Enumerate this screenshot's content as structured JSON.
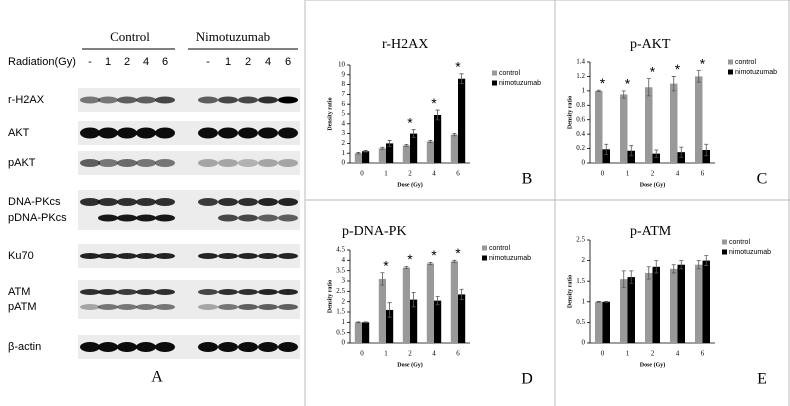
{
  "blot": {
    "groups": [
      "Control",
      "Nimotuzumab"
    ],
    "row_header": "Radiation(Gy)",
    "doses": [
      "-",
      "1",
      "2",
      "4",
      "6",
      "-",
      "1",
      "2",
      "4",
      "6"
    ],
    "rows": [
      "r-H2AX",
      "AKT",
      "pAKT",
      "DNA-PKcs",
      "pDNA-PKcs",
      "Ku70",
      "ATM",
      "pATM",
      "β-actin"
    ],
    "panel_label": "A"
  },
  "chart_data": [
    {
      "type": "bar",
      "title": "r-H2AX",
      "panel_label": "B",
      "xlabel": "Dose (Gy)",
      "ylabel": "Density ratio",
      "categories": [
        "0",
        "1",
        "2",
        "4",
        "6"
      ],
      "series": [
        {
          "name": "control",
          "color": "#999999",
          "values": [
            1,
            1.5,
            1.8,
            2.2,
            2.9
          ],
          "errors": [
            0.08,
            0.1,
            0.1,
            0.1,
            0.12
          ]
        },
        {
          "name": "nimotuzumab",
          "color": "#000000",
          "values": [
            1.2,
            2.0,
            3.0,
            4.9,
            8.6
          ],
          "errors": [
            0.08,
            0.3,
            0.4,
            0.5,
            0.5
          ]
        }
      ],
      "ylim": [
        0,
        10
      ],
      "yticks": [
        0,
        1,
        2,
        3,
        4,
        5,
        6,
        7,
        8,
        9,
        10
      ],
      "legend": "upper right",
      "annotations": [
        {
          "category": 2,
          "text": "*"
        },
        {
          "category": 3,
          "text": "*"
        },
        {
          "category": 4,
          "text": "*"
        }
      ]
    },
    {
      "type": "bar",
      "title": "p-AKT",
      "panel_label": "C",
      "xlabel": "Dose (Gy)",
      "ylabel": "Density ratio",
      "categories": [
        "0",
        "1",
        "2",
        "4",
        "6"
      ],
      "series": [
        {
          "name": "control",
          "color": "#999999",
          "values": [
            1.0,
            0.95,
            1.05,
            1.1,
            1.2
          ],
          "errors": [
            0.01,
            0.05,
            0.12,
            0.1,
            0.08
          ]
        },
        {
          "name": "nimotuzumab",
          "color": "#000000",
          "values": [
            0.19,
            0.17,
            0.13,
            0.15,
            0.18
          ],
          "errors": [
            0.07,
            0.07,
            0.05,
            0.07,
            0.08
          ]
        }
      ],
      "ylim": [
        0,
        1.4
      ],
      "yticks": [
        0,
        0.2,
        0.4,
        0.6,
        0.8,
        1,
        1.2,
        1.4
      ],
      "legend": "upper right",
      "annotations": [
        {
          "category": 0,
          "text": "*"
        },
        {
          "category": 1,
          "text": "*"
        },
        {
          "category": 2,
          "text": "*"
        },
        {
          "category": 3,
          "text": "*"
        },
        {
          "category": 4,
          "text": "*"
        }
      ]
    },
    {
      "type": "bar",
      "title": "p-DNA-PK",
      "panel_label": "D",
      "xlabel": "Dose (Gy)",
      "ylabel": "Density ratio",
      "categories": [
        "0",
        "1",
        "2",
        "4",
        "6"
      ],
      "series": [
        {
          "name": "control",
          "color": "#999999",
          "values": [
            1,
            3.1,
            3.65,
            3.85,
            3.95
          ],
          "errors": [
            0.02,
            0.3,
            0.05,
            0.05,
            0.05
          ]
        },
        {
          "name": "nimotuzumab",
          "color": "#000000",
          "values": [
            1,
            1.6,
            2.1,
            2.05,
            2.35
          ],
          "errors": [
            0.02,
            0.35,
            0.35,
            0.2,
            0.25
          ]
        }
      ],
      "ylim": [
        0,
        4.5
      ],
      "yticks": [
        0,
        0.5,
        1,
        1.5,
        2,
        2.5,
        3,
        3.5,
        4,
        4.5
      ],
      "legend": "upper right",
      "annotations": [
        {
          "category": 1,
          "text": "*"
        },
        {
          "category": 2,
          "text": "*"
        },
        {
          "category": 3,
          "text": "*"
        },
        {
          "category": 4,
          "text": "*"
        }
      ]
    },
    {
      "type": "bar",
      "title": "p-ATM",
      "panel_label": "E",
      "xlabel": "Dose (Gy)",
      "ylabel": "Density ratio",
      "categories": [
        "0",
        "1",
        "2",
        "4",
        "6"
      ],
      "series": [
        {
          "name": "control",
          "color": "#999999",
          "values": [
            1,
            1.55,
            1.7,
            1.8,
            1.9
          ],
          "errors": [
            0.01,
            0.2,
            0.15,
            0.1,
            0.1
          ]
        },
        {
          "name": "nimotuzumab",
          "color": "#000000",
          "values": [
            1,
            1.6,
            1.85,
            1.9,
            2.0
          ],
          "errors": [
            0.01,
            0.15,
            0.15,
            0.1,
            0.12
          ]
        }
      ],
      "ylim": [
        0,
        2.5
      ],
      "yticks": [
        0,
        0.5,
        1,
        1.5,
        2,
        2.5
      ],
      "legend": "upper right",
      "annotations": []
    }
  ]
}
